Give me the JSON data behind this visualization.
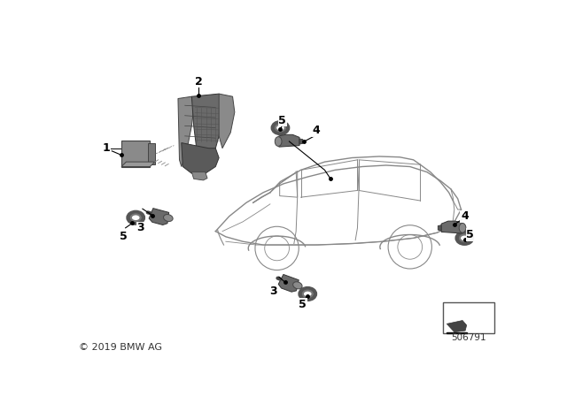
{
  "bg_color": "#ffffff",
  "line_color": "#000000",
  "part_color_dark": "#6a6a6a",
  "part_color_mid": "#8a8a8a",
  "part_color_light": "#aaaaaa",
  "text_color": "#000000",
  "copyright": "© 2019 BMW AG",
  "part_number": "506791",
  "car_line_color": "#888888",
  "leader_color": "#000000"
}
